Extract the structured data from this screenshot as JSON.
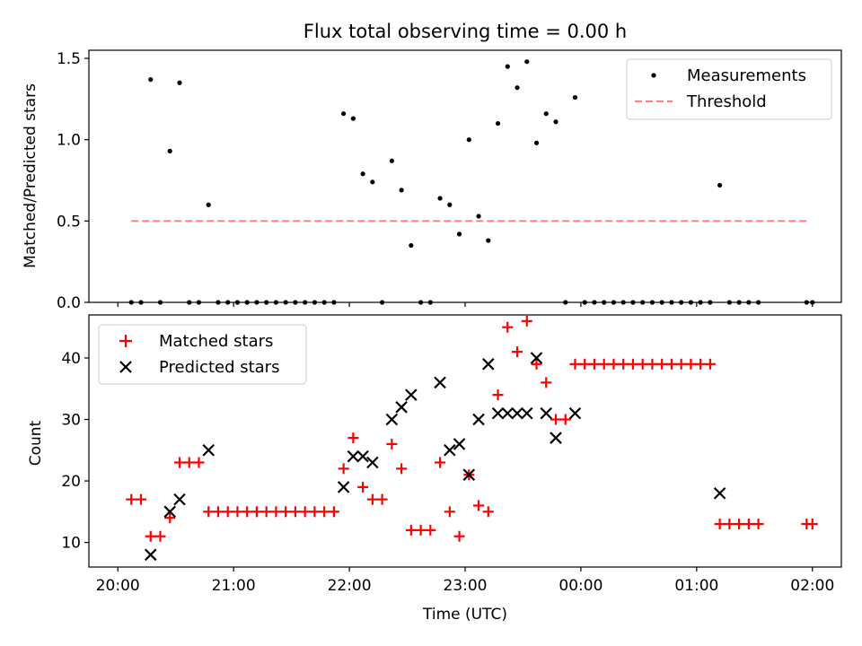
{
  "title": "Flux total observing time = 0.00 h",
  "chart_data": [
    {
      "type": "scatter",
      "panel": "top",
      "ylabel": "Matched/Predicted stars",
      "xlabel": "",
      "xlim": [
        "20:00",
        "02:00"
      ],
      "ylim": [
        0,
        1.55
      ],
      "yticks": [
        0.0,
        0.5,
        1.0,
        1.5
      ],
      "ytick_labels": [
        "0.0",
        "0.5",
        "1.0",
        "1.5"
      ],
      "xticks": [
        "20:00",
        "21:00",
        "22:00",
        "23:00",
        "00:00",
        "01:00",
        "02:00"
      ],
      "xtick_labels_shown": false,
      "legend": {
        "position": "upper right",
        "entries": [
          "Measurements",
          "Threshold"
        ]
      },
      "series": [
        {
          "name": "Measurements",
          "kind": "scatter",
          "marker": "dot",
          "color": "#000000",
          "points": [
            [
              "20:07",
              0
            ],
            [
              "20:12",
              0
            ],
            [
              "20:17",
              1.37
            ],
            [
              "20:22",
              0
            ],
            [
              "20:27",
              0.93
            ],
            [
              "20:32",
              1.35
            ],
            [
              "20:37",
              0
            ],
            [
              "20:42",
              0
            ],
            [
              "20:47",
              0.6
            ],
            [
              "20:52",
              0
            ],
            [
              "20:57",
              0
            ],
            [
              "21:02",
              0
            ],
            [
              "21:07",
              0
            ],
            [
              "21:12",
              0
            ],
            [
              "21:17",
              0
            ],
            [
              "21:22",
              0
            ],
            [
              "21:27",
              0
            ],
            [
              "21:32",
              0
            ],
            [
              "21:37",
              0
            ],
            [
              "21:42",
              0
            ],
            [
              "21:47",
              0
            ],
            [
              "21:52",
              0
            ],
            [
              "21:57",
              1.16
            ],
            [
              "22:02",
              1.13
            ],
            [
              "22:07",
              0.79
            ],
            [
              "22:12",
              0.74
            ],
            [
              "22:17",
              0
            ],
            [
              "22:22",
              0.87
            ],
            [
              "22:27",
              0.69
            ],
            [
              "22:32",
              0.35
            ],
            [
              "22:37",
              0
            ],
            [
              "22:42",
              0
            ],
            [
              "22:47",
              0.64
            ],
            [
              "22:52",
              0.6
            ],
            [
              "22:57",
              0.42
            ],
            [
              "23:02",
              1.0
            ],
            [
              "23:07",
              0.53
            ],
            [
              "23:12",
              0.38
            ],
            [
              "23:17",
              1.1
            ],
            [
              "23:22",
              1.45
            ],
            [
              "23:27",
              1.32
            ],
            [
              "23:32",
              1.48
            ],
            [
              "23:37",
              0.98
            ],
            [
              "23:42",
              1.16
            ],
            [
              "23:47",
              1.11
            ],
            [
              "23:52",
              0
            ],
            [
              "23:57",
              1.26
            ],
            [
              "00:02",
              0
            ],
            [
              "00:07",
              0
            ],
            [
              "00:12",
              0
            ],
            [
              "00:17",
              0
            ],
            [
              "00:22",
              0
            ],
            [
              "00:27",
              0
            ],
            [
              "00:32",
              0
            ],
            [
              "00:37",
              0
            ],
            [
              "00:42",
              0
            ],
            [
              "00:47",
              0
            ],
            [
              "00:52",
              0
            ],
            [
              "00:57",
              0
            ],
            [
              "01:02",
              0
            ],
            [
              "01:07",
              0
            ],
            [
              "01:12",
              0.72
            ],
            [
              "01:17",
              0
            ],
            [
              "01:22",
              0
            ],
            [
              "01:27",
              0
            ],
            [
              "01:32",
              0
            ],
            [
              "01:57",
              0
            ],
            [
              "02:00",
              0
            ]
          ]
        },
        {
          "name": "Threshold",
          "kind": "line",
          "style": "dashed",
          "color": "#ff7f7f",
          "points": [
            [
              "20:07",
              0.5
            ],
            [
              "01:57",
              0.5
            ]
          ]
        }
      ]
    },
    {
      "type": "scatter",
      "panel": "bottom",
      "ylabel": "Count",
      "xlabel": "Time (UTC)",
      "xlim": [
        "20:00",
        "02:00"
      ],
      "ylim": [
        6,
        47
      ],
      "yticks": [
        10,
        20,
        30,
        40
      ],
      "ytick_labels": [
        "10",
        "20",
        "30",
        "40"
      ],
      "xticks": [
        "20:00",
        "21:00",
        "22:00",
        "23:00",
        "00:00",
        "01:00",
        "02:00"
      ],
      "xtick_labels": [
        "20:00",
        "21:00",
        "22:00",
        "23:00",
        "00:00",
        "01:00",
        "02:00"
      ],
      "legend": {
        "position": "upper left",
        "entries": [
          "Matched stars",
          "Predicted stars"
        ]
      },
      "series": [
        {
          "name": "Matched stars",
          "kind": "scatter",
          "marker": "plus",
          "color": "#ff0000",
          "points": [
            [
              "20:07",
              17
            ],
            [
              "20:12",
              17
            ],
            [
              "20:17",
              11
            ],
            [
              "20:22",
              11
            ],
            [
              "20:27",
              14
            ],
            [
              "20:32",
              23
            ],
            [
              "20:37",
              23
            ],
            [
              "20:42",
              23
            ],
            [
              "20:47",
              15
            ],
            [
              "20:52",
              15
            ],
            [
              "20:57",
              15
            ],
            [
              "21:02",
              15
            ],
            [
              "21:07",
              15
            ],
            [
              "21:12",
              15
            ],
            [
              "21:17",
              15
            ],
            [
              "21:22",
              15
            ],
            [
              "21:27",
              15
            ],
            [
              "21:32",
              15
            ],
            [
              "21:37",
              15
            ],
            [
              "21:42",
              15
            ],
            [
              "21:47",
              15
            ],
            [
              "21:52",
              15
            ],
            [
              "21:57",
              22
            ],
            [
              "22:02",
              27
            ],
            [
              "22:07",
              19
            ],
            [
              "22:12",
              17
            ],
            [
              "22:17",
              17
            ],
            [
              "22:22",
              26
            ],
            [
              "22:27",
              22
            ],
            [
              "22:32",
              12
            ],
            [
              "22:37",
              12
            ],
            [
              "22:42",
              12
            ],
            [
              "22:47",
              23
            ],
            [
              "22:52",
              15
            ],
            [
              "22:57",
              11
            ],
            [
              "23:02",
              21
            ],
            [
              "23:07",
              16
            ],
            [
              "23:12",
              15
            ],
            [
              "23:17",
              34
            ],
            [
              "23:22",
              45
            ],
            [
              "23:27",
              41
            ],
            [
              "23:32",
              46
            ],
            [
              "23:37",
              39
            ],
            [
              "23:42",
              36
            ],
            [
              "23:47",
              30
            ],
            [
              "23:52",
              30
            ],
            [
              "23:57",
              39
            ],
            [
              "00:02",
              39
            ],
            [
              "00:07",
              39
            ],
            [
              "00:12",
              39
            ],
            [
              "00:17",
              39
            ],
            [
              "00:22",
              39
            ],
            [
              "00:27",
              39
            ],
            [
              "00:32",
              39
            ],
            [
              "00:37",
              39
            ],
            [
              "00:42",
              39
            ],
            [
              "00:47",
              39
            ],
            [
              "00:52",
              39
            ],
            [
              "00:57",
              39
            ],
            [
              "01:02",
              39
            ],
            [
              "01:07",
              39
            ],
            [
              "01:12",
              13
            ],
            [
              "01:17",
              13
            ],
            [
              "01:22",
              13
            ],
            [
              "01:27",
              13
            ],
            [
              "01:32",
              13
            ],
            [
              "01:57",
              13
            ],
            [
              "02:00",
              13
            ]
          ]
        },
        {
          "name": "Predicted stars",
          "kind": "scatter",
          "marker": "x",
          "color": "#000000",
          "points": [
            [
              "20:17",
              8
            ],
            [
              "20:27",
              15
            ],
            [
              "20:32",
              17
            ],
            [
              "20:47",
              25
            ],
            [
              "21:57",
              19
            ],
            [
              "22:02",
              24
            ],
            [
              "22:07",
              24
            ],
            [
              "22:12",
              23
            ],
            [
              "22:22",
              30
            ],
            [
              "22:27",
              32
            ],
            [
              "22:32",
              34
            ],
            [
              "22:47",
              36
            ],
            [
              "22:52",
              25
            ],
            [
              "22:57",
              26
            ],
            [
              "23:02",
              21
            ],
            [
              "23:07",
              30
            ],
            [
              "23:12",
              39
            ],
            [
              "23:17",
              31
            ],
            [
              "23:22",
              31
            ],
            [
              "23:27",
              31
            ],
            [
              "23:32",
              31
            ],
            [
              "23:37",
              40
            ],
            [
              "23:42",
              31
            ],
            [
              "23:47",
              27
            ],
            [
              "23:57",
              31
            ],
            [
              "01:12",
              18
            ]
          ]
        }
      ]
    }
  ]
}
